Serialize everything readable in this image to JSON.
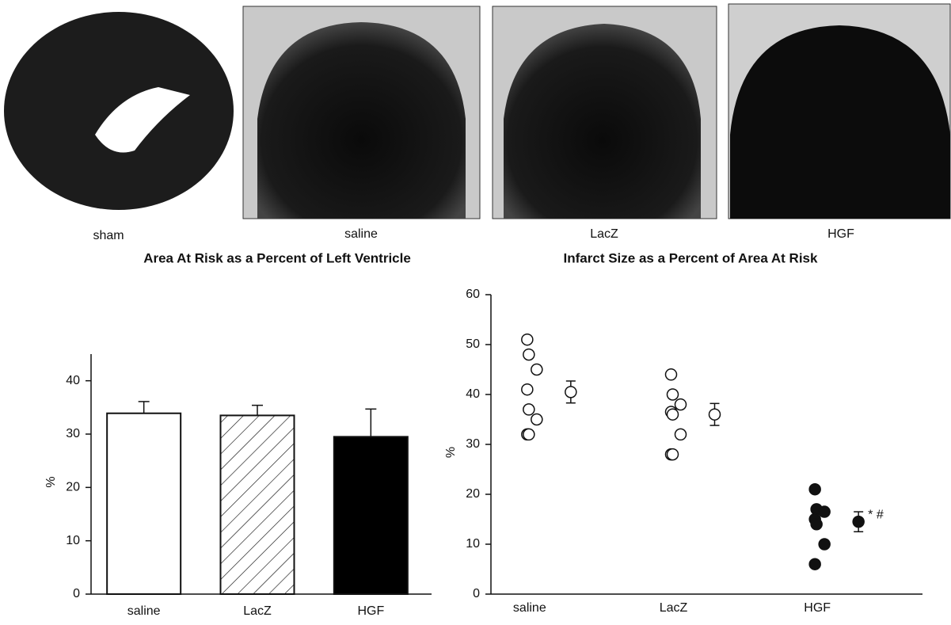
{
  "images": [
    {
      "label": "sham"
    },
    {
      "label": "saline"
    },
    {
      "label": "LacZ"
    },
    {
      "label": "HGF"
    }
  ],
  "chart_data": [
    {
      "type": "bar",
      "title": "Area At Risk as a Percent of Left Ventricle",
      "y_label": "%",
      "categories": [
        "saline",
        "LacZ",
        "HGF"
      ],
      "values": [
        33.9,
        33.5,
        29.5
      ],
      "errors": [
        2.2,
        1.9,
        5.2
      ],
      "fills": [
        "white",
        "hatch",
        "black"
      ],
      "ylim": [
        0,
        45
      ],
      "yticks": [
        0,
        10,
        20,
        30,
        40
      ]
    },
    {
      "type": "strip",
      "title": "Infarct Size as a Percent of Area At Risk",
      "y_label": "%",
      "categories": [
        "saline",
        "LacZ",
        "HGF"
      ],
      "groups": [
        {
          "values": [
            51,
            48,
            45,
            41,
            37,
            35,
            32,
            32
          ],
          "mean": 40.5,
          "error": 2.2,
          "filled": false
        },
        {
          "values": [
            44,
            40,
            38,
            36.5,
            36,
            32,
            28,
            28
          ],
          "mean": 36,
          "error": 2.2,
          "filled": false
        },
        {
          "values": [
            21,
            17,
            16.5,
            15,
            14,
            10,
            6
          ],
          "mean": 14.5,
          "error": 2,
          "filled": true,
          "annotation": "* #"
        }
      ],
      "ylim": [
        0,
        60
      ],
      "yticks": [
        0,
        10,
        20,
        30,
        40,
        50,
        60
      ]
    }
  ]
}
